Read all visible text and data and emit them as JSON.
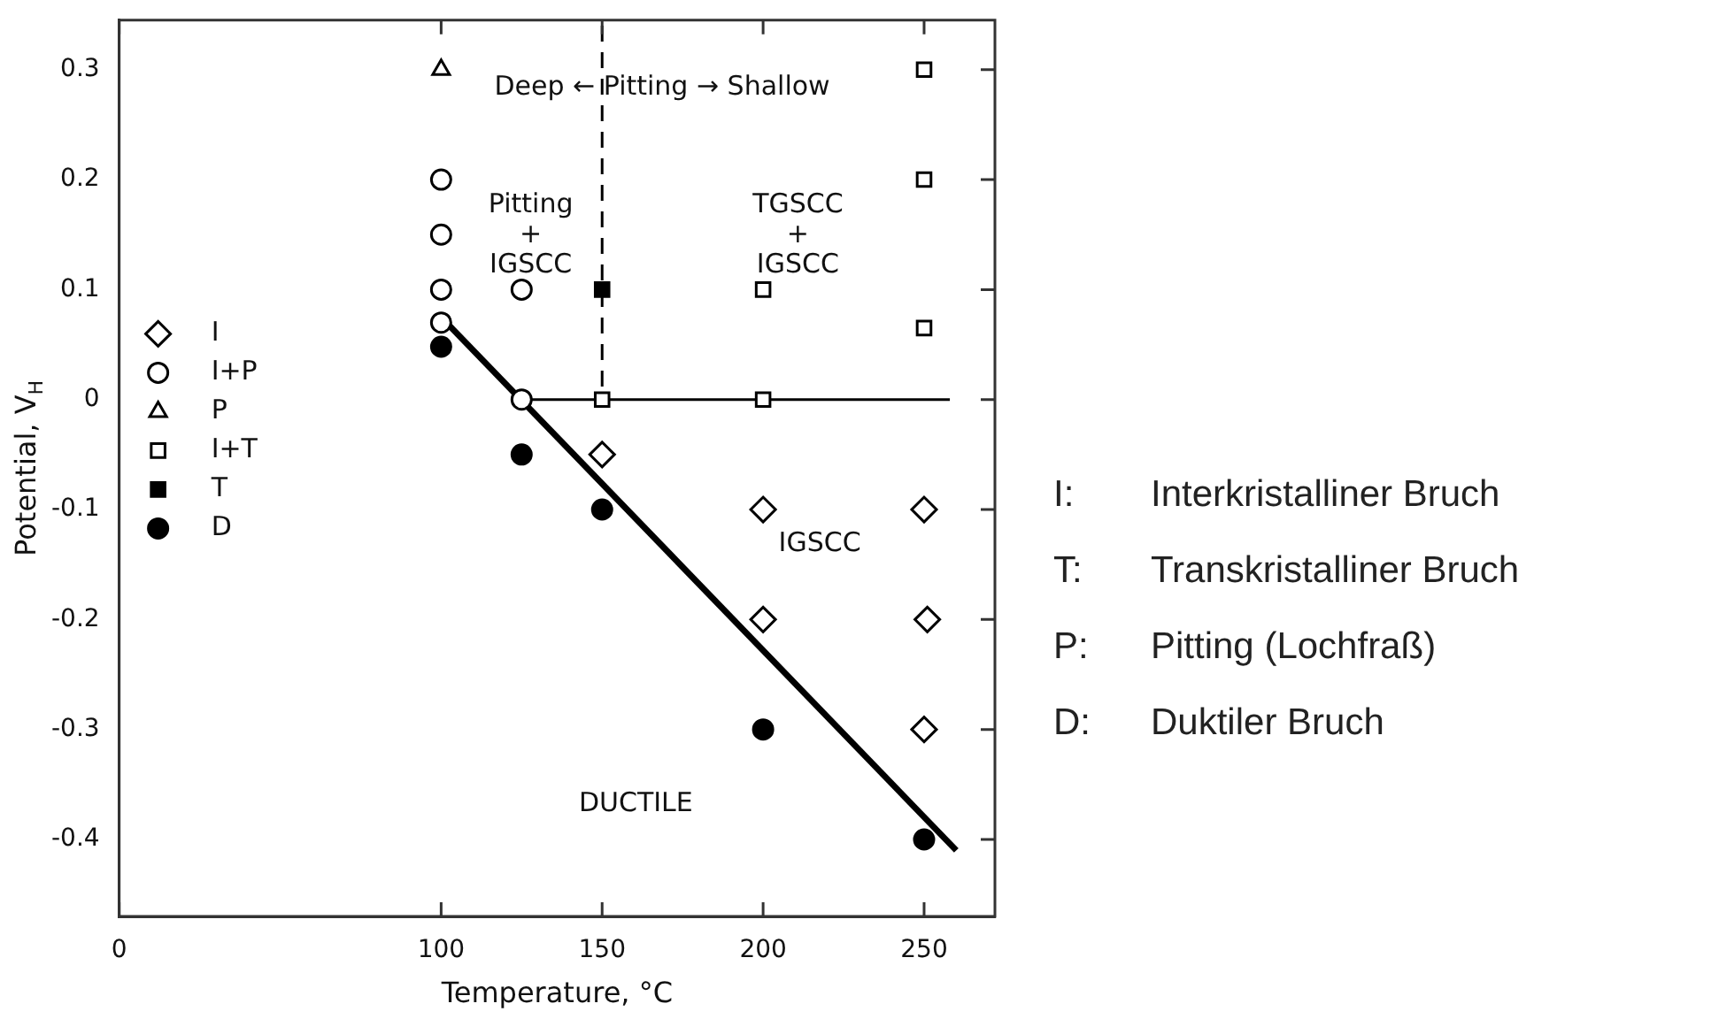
{
  "chart_data": {
    "type": "scatter",
    "xlabel": "Temperature, °C",
    "ylabel": "Potential, V$_{H}$",
    "xlim": [
      0,
      272
    ],
    "xticks": [
      0,
      100,
      150,
      200,
      250
    ],
    "ylim": [
      -0.47,
      0.345
    ],
    "yticks": [
      {
        "value": 0.3,
        "label": "0.3"
      },
      {
        "value": 0.2,
        "label": "0.2"
      },
      {
        "value": 0.1,
        "label": "0.1"
      },
      0,
      {
        "value": -0.1,
        "label": "-0.1"
      },
      {
        "value": -0.2,
        "label": "-0.2"
      },
      {
        "value": -0.3,
        "label": "-0.3"
      },
      {
        "value": -0.4,
        "label": "-0.4"
      }
    ],
    "grid": false,
    "legend": "left",
    "series": [
      {
        "name": "I",
        "color": "#ffffff",
        "marker": "diamond",
        "x": [
          150,
          200,
          250,
          200,
          251,
          250
        ],
        "values": [
          -0.05,
          -0.1,
          -0.1,
          -0.2,
          -0.2,
          -0.3
        ]
      },
      {
        "name": "I+P",
        "color": "#ffffff",
        "marker": "circle",
        "x": [
          100,
          100,
          100,
          100,
          125,
          125
        ],
        "values": [
          0.2,
          0.15,
          0.1,
          0.07,
          0.1,
          0
        ]
      },
      {
        "name": "P",
        "color": "#ffffff",
        "marker": "triangle",
        "x": [
          100
        ],
        "values": [
          0.3
        ]
      },
      {
        "name": "I+T",
        "color": "#ffffff",
        "marker": "square",
        "x": [
          250,
          250,
          200,
          250,
          150,
          200
        ],
        "values": [
          0.3,
          0.2,
          0.1,
          0.065,
          0,
          0
        ]
      },
      {
        "name": "T",
        "color": "#000000",
        "marker": "square",
        "x": [
          150
        ],
        "values": [
          0.1
        ]
      },
      {
        "name": "D",
        "color": "#000000",
        "marker": "circle",
        "x": [
          100,
          125,
          150,
          200,
          250
        ],
        "values": [
          0.048,
          -0.05,
          -0.1,
          -0.3,
          -0.4
        ]
      },
      {
        "type": "line",
        "color": "#000000",
        "marker": "none",
        "line_style": "solid",
        "x": [
          100,
          260
        ],
        "values": [
          0.075,
          -0.41
        ]
      },
      {
        "type": "line",
        "color": "#000000",
        "marker": "none",
        "line_style": "solid",
        "x": [
          125,
          258
        ],
        "values": [
          0,
          0
        ]
      },
      {
        "type": "line",
        "color": "#000000",
        "marker": "none",
        "line_style": "dashed",
        "x": [
          150,
          150
        ],
        "values": [
          0.34,
          0
        ]
      }
    ],
    "annotations": [
      "Deep ← Pitting → Shallow",
      "Pitting\n+\nIGSCC",
      "TGSCC\n+\nIGSCC",
      "IGSCC",
      "DUCTILE",
      "I: Interkristalliner Bruch",
      "T: Transkristalliner Bruch",
      "P: Pitting (Lochfraß)",
      "D: Duktiler Bruch"
    ]
  }
}
